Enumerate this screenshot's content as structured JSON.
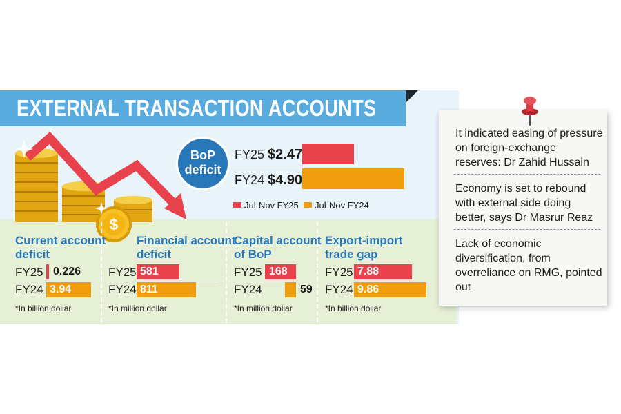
{
  "title": "EXTERNAL TRANSACTION ACCOUNTS",
  "bop": {
    "label_line1": "BoP",
    "label_line2": "deficit",
    "fy25_label": "FY25",
    "fy25_value": "$2.47",
    "fy24_label": "FY24",
    "fy24_value": "$4.90",
    "unit_suffix": "b",
    "legend_fy25": "Jul-Nov FY25",
    "legend_fy24": "Jul-Nov FY24"
  },
  "colors": {
    "fy25": "#e8434c",
    "fy24": "#f19d10",
    "title_blue": "#2877b9",
    "banner": "#5aabdd"
  },
  "sections": [
    {
      "title_line1": "Current account",
      "title_line2": "deficit",
      "fy25_label": "FY25",
      "fy25_value": "0.226",
      "fy24_label": "FY24",
      "fy24_value": "3.94",
      "note": "*In billion dollar"
    },
    {
      "title_line1": "Financial account",
      "title_line2": "deficit",
      "fy25_label": "FY25",
      "fy25_value": "581",
      "fy24_label": "FY24",
      "fy24_value": "811",
      "note": "*In million dollar"
    },
    {
      "title_line1": "Capital account",
      "title_line2": "of BoP",
      "fy25_label": "FY25",
      "fy25_value": "168",
      "fy24_label": "FY24",
      "fy24_value": "59",
      "note": "*In million dollar"
    },
    {
      "title_line1": "Export-import",
      "title_line2": "trade gap",
      "fy25_label": "FY25",
      "fy25_value": "7.88",
      "fy24_label": "FY24",
      "fy24_value": "9.86",
      "note": "*In billion dollar"
    }
  ],
  "quotes": [
    "It indicated easing of pressure on foreign-exchange reserves: Dr Zahid Hussain",
    "Economy is set to rebound with external side doing better, says Dr Masrur Reaz",
    "Lack of economic diversification, from overreliance on RMG, pointed out"
  ],
  "chart_data": [
    {
      "type": "bar",
      "title": "BoP deficit",
      "categories": [
        "FY25",
        "FY24"
      ],
      "values": [
        2.47,
        4.9
      ],
      "legend": [
        "Jul-Nov FY25",
        "Jul-Nov FY24"
      ]
    },
    {
      "type": "bar",
      "title": "Current account deficit",
      "categories": [
        "FY25",
        "FY24"
      ],
      "values": [
        0.226,
        3.94
      ],
      "note": "*In billion dollar"
    },
    {
      "type": "bar",
      "title": "Financial account deficit",
      "categories": [
        "FY25",
        "FY24"
      ],
      "values": [
        581,
        811
      ],
      "note": "*In million dollar"
    },
    {
      "type": "bar",
      "title": "Capital account of BoP",
      "categories": [
        "FY25",
        "FY24"
      ],
      "values": [
        168,
        59
      ],
      "note": "*In million dollar"
    },
    {
      "type": "bar",
      "title": "Export-import trade gap",
      "categories": [
        "FY25",
        "FY24"
      ],
      "values": [
        7.88,
        9.86
      ],
      "note": "*In billion dollar"
    }
  ]
}
